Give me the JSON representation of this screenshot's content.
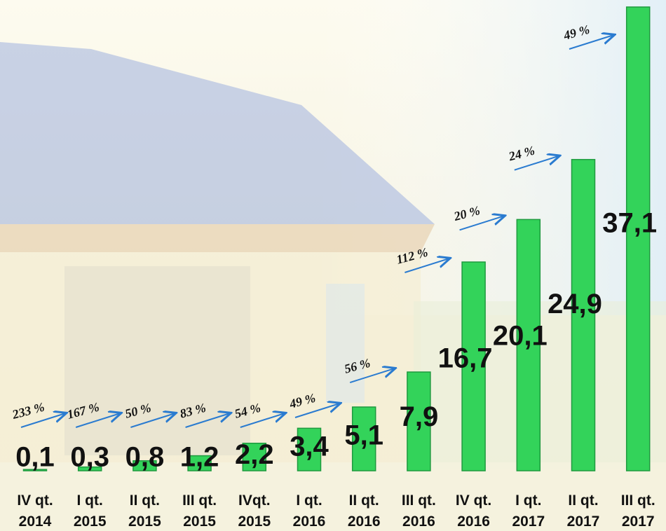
{
  "chart_data": {
    "type": "bar",
    "categories": [
      "IV qt.\n2014",
      "I qt.\n2015",
      "II qt.\n2015",
      "III qt.\n2015",
      "IVqt.\n2015",
      "I qt.\n2016",
      "II qt.\n2016",
      "III qt.\n2016",
      "IV qt.\n2016",
      "I qt.\n2017",
      "II qt.\n2017",
      "III qt.\n2017"
    ],
    "values": [
      0.1,
      0.3,
      0.8,
      1.2,
      2.2,
      3.4,
      5.1,
      7.9,
      16.7,
      20.1,
      24.9,
      37.1
    ],
    "value_labels": [
      "0,1",
      "0,3",
      "0,8",
      "1,2",
      "2,2",
      "3,4",
      "5,1",
      "7,9",
      "16,7",
      "20,1",
      "24,9",
      "37,1"
    ],
    "annotations": [
      "233 %",
      "167 %",
      "50 %",
      "83 %",
      "54 %",
      "49 %",
      "56 %",
      "112 %",
      "20 %",
      "24 %",
      "49 %"
    ],
    "color": "#33d35a"
  }
}
